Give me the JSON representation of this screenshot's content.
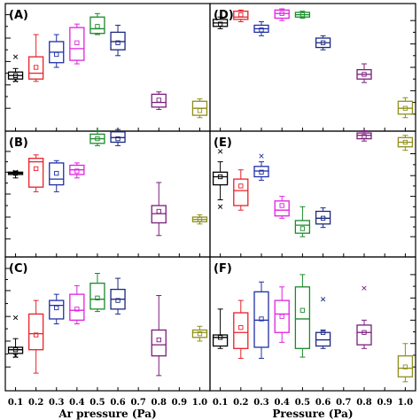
{
  "chart_data": {
    "type": "box",
    "layout": "3 rows x 2 columns, shared x axis per column",
    "columns": [
      {
        "xlabel": "Ar pressure (Pa)",
        "xticks": [
          "0.1",
          "0.2",
          "0.3",
          "0.4",
          "0.5",
          "0.6",
          "0.7",
          "0.8",
          "0.9",
          "1.0"
        ],
        "xlim": [
          0.05,
          1.05
        ]
      },
      {
        "xlabel": "Pressure (Pa)",
        "xticks": [
          "0.1",
          "0.2",
          "0.3",
          "0.4",
          "0.5",
          "0.6",
          "0.7",
          "0.8",
          "0.9",
          "1.0"
        ],
        "xlim": [
          0.05,
          1.05
        ]
      }
    ],
    "box_colors": {
      "0.1": "#000000",
      "0.2": "#e8202a",
      "0.3": "#1f2fa8",
      "0.4": "#e020e0",
      "0.5": "#1a8a2a",
      "0.6": "#1a2880",
      "0.8": "#7a1d7a",
      "1.0": "#8f8f1a"
    },
    "panels": [
      {
        "label": "(A)",
        "ylim": [
          0,
          10
        ],
        "yticks": [
          1.5,
          3.5,
          5.5,
          7.5,
          9.5
        ],
        "boxes": [
          {
            "x": 0.1,
            "whislo": 3.8,
            "q1": 4.0,
            "med": 4.3,
            "q3": 4.6,
            "whishi": 4.9,
            "mean": 4.3,
            "fliers": [
              5.9,
              3.9
            ]
          },
          {
            "x": 0.2,
            "whislo": 3.8,
            "q1": 4.0,
            "med": 4.5,
            "q3": 5.9,
            "whishi": 7.8,
            "mean": 5.0,
            "fliers": []
          },
          {
            "x": 0.3,
            "whislo": 5.0,
            "q1": 5.4,
            "med": 6.3,
            "q3": 7.2,
            "whishi": 7.8,
            "mean": 6.1,
            "fliers": []
          },
          {
            "x": 0.4,
            "whislo": 5.3,
            "q1": 5.6,
            "med": 6.6,
            "q3": 8.4,
            "whishi": 8.7,
            "mean": 7.1,
            "fliers": []
          },
          {
            "x": 0.5,
            "whislo": 7.8,
            "q1": 7.9,
            "med": 8.3,
            "q3": 9.3,
            "whishi": 9.6,
            "mean": 8.5,
            "fliers": []
          },
          {
            "x": 0.6,
            "whislo": 6.0,
            "q1": 6.5,
            "med": 7.2,
            "q3": 8.0,
            "whishi": 8.6,
            "mean": 7.1,
            "fliers": []
          },
          {
            "x": 0.8,
            "whislo": 1.4,
            "q1": 1.6,
            "med": 2.0,
            "q3": 2.7,
            "whishi": 2.9,
            "mean": 2.2,
            "fliers": []
          },
          {
            "x": 1.0,
            "whislo": 0.7,
            "q1": 0.9,
            "med": 1.5,
            "q3": 2.1,
            "whishi": 2.3,
            "mean": 1.3,
            "fliers": []
          }
        ]
      },
      {
        "label": "(B)",
        "ylim": [
          0,
          10
        ],
        "yticks": [
          1.1,
          3.0,
          5.0,
          6.9,
          8.7
        ],
        "boxes": [
          {
            "x": 0.1,
            "whislo": 6.4,
            "q1": 6.7,
            "med": 6.8,
            "q3": 6.9,
            "whishi": 7.0,
            "mean": 6.8,
            "fliers": [
              6.9
            ]
          },
          {
            "x": 0.2,
            "whislo": 5.2,
            "q1": 5.6,
            "med": 7.8,
            "q3": 8.1,
            "whishi": 8.4,
            "mean": 7.2,
            "fliers": []
          },
          {
            "x": 0.3,
            "whislo": 5.2,
            "q1": 5.8,
            "med": 6.3,
            "q3": 7.7,
            "whishi": 7.9,
            "mean": 6.8,
            "fliers": []
          },
          {
            "x": 0.4,
            "whislo": 6.4,
            "q1": 6.7,
            "med": 7.1,
            "q3": 7.5,
            "whishi": 7.7,
            "mean": 7.0,
            "fliers": []
          },
          {
            "x": 0.5,
            "whislo": 9.2,
            "q1": 9.4,
            "med": 9.8,
            "q3": 10.2,
            "whishi": 10.5,
            "mean": 9.8,
            "fliers": []
          },
          {
            "x": 0.6,
            "whislo": 9.2,
            "q1": 9.5,
            "med": 9.9,
            "q3": 10.4,
            "whishi": 10.6,
            "mean": 9.8,
            "fliers": []
          },
          {
            "x": 0.8,
            "whislo": 1.4,
            "q1": 2.5,
            "med": 3.3,
            "q3": 4.0,
            "whishi": 6.0,
            "mean": 3.5,
            "fliers": []
          },
          {
            "x": 1.0,
            "whislo": 2.4,
            "q1": 2.6,
            "med": 2.8,
            "q3": 3.0,
            "whishi": 3.2,
            "mean": 2.8,
            "fliers": []
          }
        ]
      },
      {
        "label": "(C)",
        "ylim": [
          0,
          10
        ],
        "yticks": [
          1.5,
          3.6,
          5.6,
          7.7,
          9.5
        ],
        "boxes": [
          {
            "x": 0.1,
            "whislo": 2.3,
            "q1": 2.6,
            "med": 2.9,
            "q3": 3.1,
            "whishi": 3.8,
            "mean": 2.9,
            "fliers": [
              5.5,
              2.4
            ]
          },
          {
            "x": 0.2,
            "whislo": 1.0,
            "q1": 2.9,
            "med": 4.2,
            "q3": 5.8,
            "whishi": 6.9,
            "mean": 4.1,
            "fliers": []
          },
          {
            "x": 0.3,
            "whislo": 5.0,
            "q1": 5.4,
            "med": 6.5,
            "q3": 6.9,
            "whishi": 7.4,
            "mean": 6.3,
            "fliers": []
          },
          {
            "x": 0.4,
            "whislo": 5.0,
            "q1": 5.3,
            "med": 6.1,
            "q3": 7.4,
            "whishi": 8.1,
            "mean": 6.2,
            "fliers": []
          },
          {
            "x": 0.5,
            "whislo": 6.0,
            "q1": 6.2,
            "med": 7.0,
            "q3": 8.3,
            "whishi": 9.1,
            "mean": 7.1,
            "fliers": []
          },
          {
            "x": 0.6,
            "whislo": 5.8,
            "q1": 6.2,
            "med": 7.0,
            "q3": 7.8,
            "whishi": 8.7,
            "mean": 6.9,
            "fliers": []
          },
          {
            "x": 0.8,
            "whislo": 0.8,
            "q1": 2.4,
            "med": 3.3,
            "q3": 4.5,
            "whishi": 7.3,
            "mean": 3.7,
            "fliers": []
          },
          {
            "x": 1.0,
            "whislo": 3.6,
            "q1": 3.9,
            "med": 4.3,
            "q3": 4.5,
            "whishi": 4.8,
            "mean": 4.2,
            "fliers": []
          }
        ]
      },
      {
        "label": "(D)",
        "ylim": [
          0,
          10
        ],
        "yticks": [
          1.0,
          3.0,
          5.0,
          7.0,
          9.0
        ],
        "boxes": [
          {
            "x": 0.1,
            "whislo": 8.3,
            "q1": 8.5,
            "med": 8.8,
            "q3": 9.1,
            "whishi": 9.3,
            "mean": 8.7,
            "fliers": []
          },
          {
            "x": 0.2,
            "whislo": 8.9,
            "q1": 9.1,
            "med": 9.3,
            "q3": 9.8,
            "whishi": 9.9,
            "mean": 9.5,
            "fliers": []
          },
          {
            "x": 0.3,
            "whislo": 7.7,
            "q1": 8.0,
            "med": 8.3,
            "q3": 8.6,
            "whishi": 8.9,
            "mean": 8.2,
            "fliers": []
          },
          {
            "x": 0.4,
            "whislo": 9.0,
            "q1": 9.2,
            "med": 9.6,
            "q3": 9.9,
            "whishi": 10.0,
            "mean": 9.6,
            "fliers": []
          },
          {
            "x": 0.5,
            "whislo": 9.2,
            "q1": 9.3,
            "med": 9.5,
            "q3": 9.7,
            "whishi": 9.8,
            "mean": 9.5,
            "fliers": []
          },
          {
            "x": 0.6,
            "whislo": 6.5,
            "q1": 6.7,
            "med": 7.1,
            "q3": 7.5,
            "whishi": 7.7,
            "mean": 7.1,
            "fliers": []
          },
          {
            "x": 0.8,
            "whislo": 3.7,
            "q1": 4.0,
            "med": 4.4,
            "q3": 4.8,
            "whishi": 5.3,
            "mean": 4.4,
            "fliers": []
          },
          {
            "x": 1.0,
            "whislo": 0.7,
            "q1": 1.0,
            "med": 1.5,
            "q3": 2.1,
            "whishi": 2.4,
            "mean": 1.5,
            "fliers": []
          }
        ]
      },
      {
        "label": "(E)",
        "ylim": [
          0,
          10
        ],
        "yticks": [
          1.3,
          3.0,
          4.8,
          6.6,
          8.5
        ],
        "boxes": [
          {
            "x": 0.1,
            "whislo": 4.5,
            "q1": 5.8,
            "med": 6.5,
            "q3": 6.9,
            "whishi": 7.8,
            "mean": 6.5,
            "fliers": [
              3.9,
              8.7
            ]
          },
          {
            "x": 0.2,
            "whislo": 3.6,
            "q1": 4.0,
            "med": 5.3,
            "q3": 6.3,
            "whishi": 7.1,
            "mean": 5.7,
            "fliers": []
          },
          {
            "x": 0.3,
            "whislo": 6.2,
            "q1": 6.5,
            "med": 7.0,
            "q3": 7.4,
            "whishi": 7.8,
            "mean": 6.9,
            "fliers": [
              8.3
            ]
          },
          {
            "x": 0.4,
            "whislo": 2.9,
            "q1": 3.1,
            "med": 3.6,
            "q3": 4.4,
            "whishi": 4.8,
            "mean": 4.0,
            "fliers": []
          },
          {
            "x": 0.5,
            "whislo": 1.3,
            "q1": 1.6,
            "med": 2.3,
            "q3": 2.7,
            "whishi": 3.9,
            "mean": 2.0,
            "fliers": []
          },
          {
            "x": 0.6,
            "whislo": 2.1,
            "q1": 2.4,
            "med": 2.9,
            "q3": 3.5,
            "whishi": 3.8,
            "mean": 2.9,
            "fliers": []
          },
          {
            "x": 0.8,
            "whislo": 9.6,
            "q1": 9.8,
            "med": 10.1,
            "q3": 10.3,
            "whishi": 10.5,
            "mean": 10.0,
            "fliers": []
          },
          {
            "x": 1.0,
            "whislo": 8.8,
            "q1": 9.1,
            "med": 9.5,
            "q3": 9.9,
            "whishi": 10.1,
            "mean": 9.5,
            "fliers": []
          }
        ]
      },
      {
        "label": "(F)",
        "ylim": [
          0,
          10
        ],
        "yticks": [
          1.5,
          3.4,
          5.3,
          7.1,
          9.0
        ],
        "boxes": [
          {
            "x": 0.1,
            "whislo": 3.0,
            "q1": 3.2,
            "med": 3.9,
            "q3": 4.1,
            "whishi": 6.2,
            "mean": 3.9,
            "fliers": []
          },
          {
            "x": 0.2,
            "whislo": 2.2,
            "q1": 3.0,
            "med": 4.3,
            "q3": 5.9,
            "whishi": 6.9,
            "mean": 4.7,
            "fliers": []
          },
          {
            "x": 0.3,
            "whislo": 2.2,
            "q1": 3.1,
            "med": 5.3,
            "q3": 7.6,
            "whishi": 8.4,
            "mean": 5.4,
            "fliers": []
          },
          {
            "x": 0.4,
            "whislo": 3.5,
            "q1": 4.3,
            "med": 5.8,
            "q3": 6.9,
            "whishi": 8.0,
            "mean": 5.6,
            "fliers": []
          },
          {
            "x": 0.5,
            "whislo": 2.3,
            "q1": 3.0,
            "med": 5.4,
            "q3": 8.0,
            "whishi": 9.0,
            "mean": 6.1,
            "fliers": []
          },
          {
            "x": 0.6,
            "whislo": 3.0,
            "q1": 3.2,
            "med": 3.7,
            "q3": 4.3,
            "whishi": 4.5,
            "mean": 4.3,
            "fliers": [
              7.0
            ]
          },
          {
            "x": 0.8,
            "whislo": 3.0,
            "q1": 3.3,
            "med": 4.3,
            "q3": 4.9,
            "whishi": 5.3,
            "mean": 4.3,
            "fliers": [
              7.9
            ]
          },
          {
            "x": 1.0,
            "whislo": 0.3,
            "q1": 0.7,
            "med": 1.4,
            "q3": 2.4,
            "whishi": 3.4,
            "mean": 1.5,
            "fliers": []
          }
        ]
      }
    ]
  }
}
